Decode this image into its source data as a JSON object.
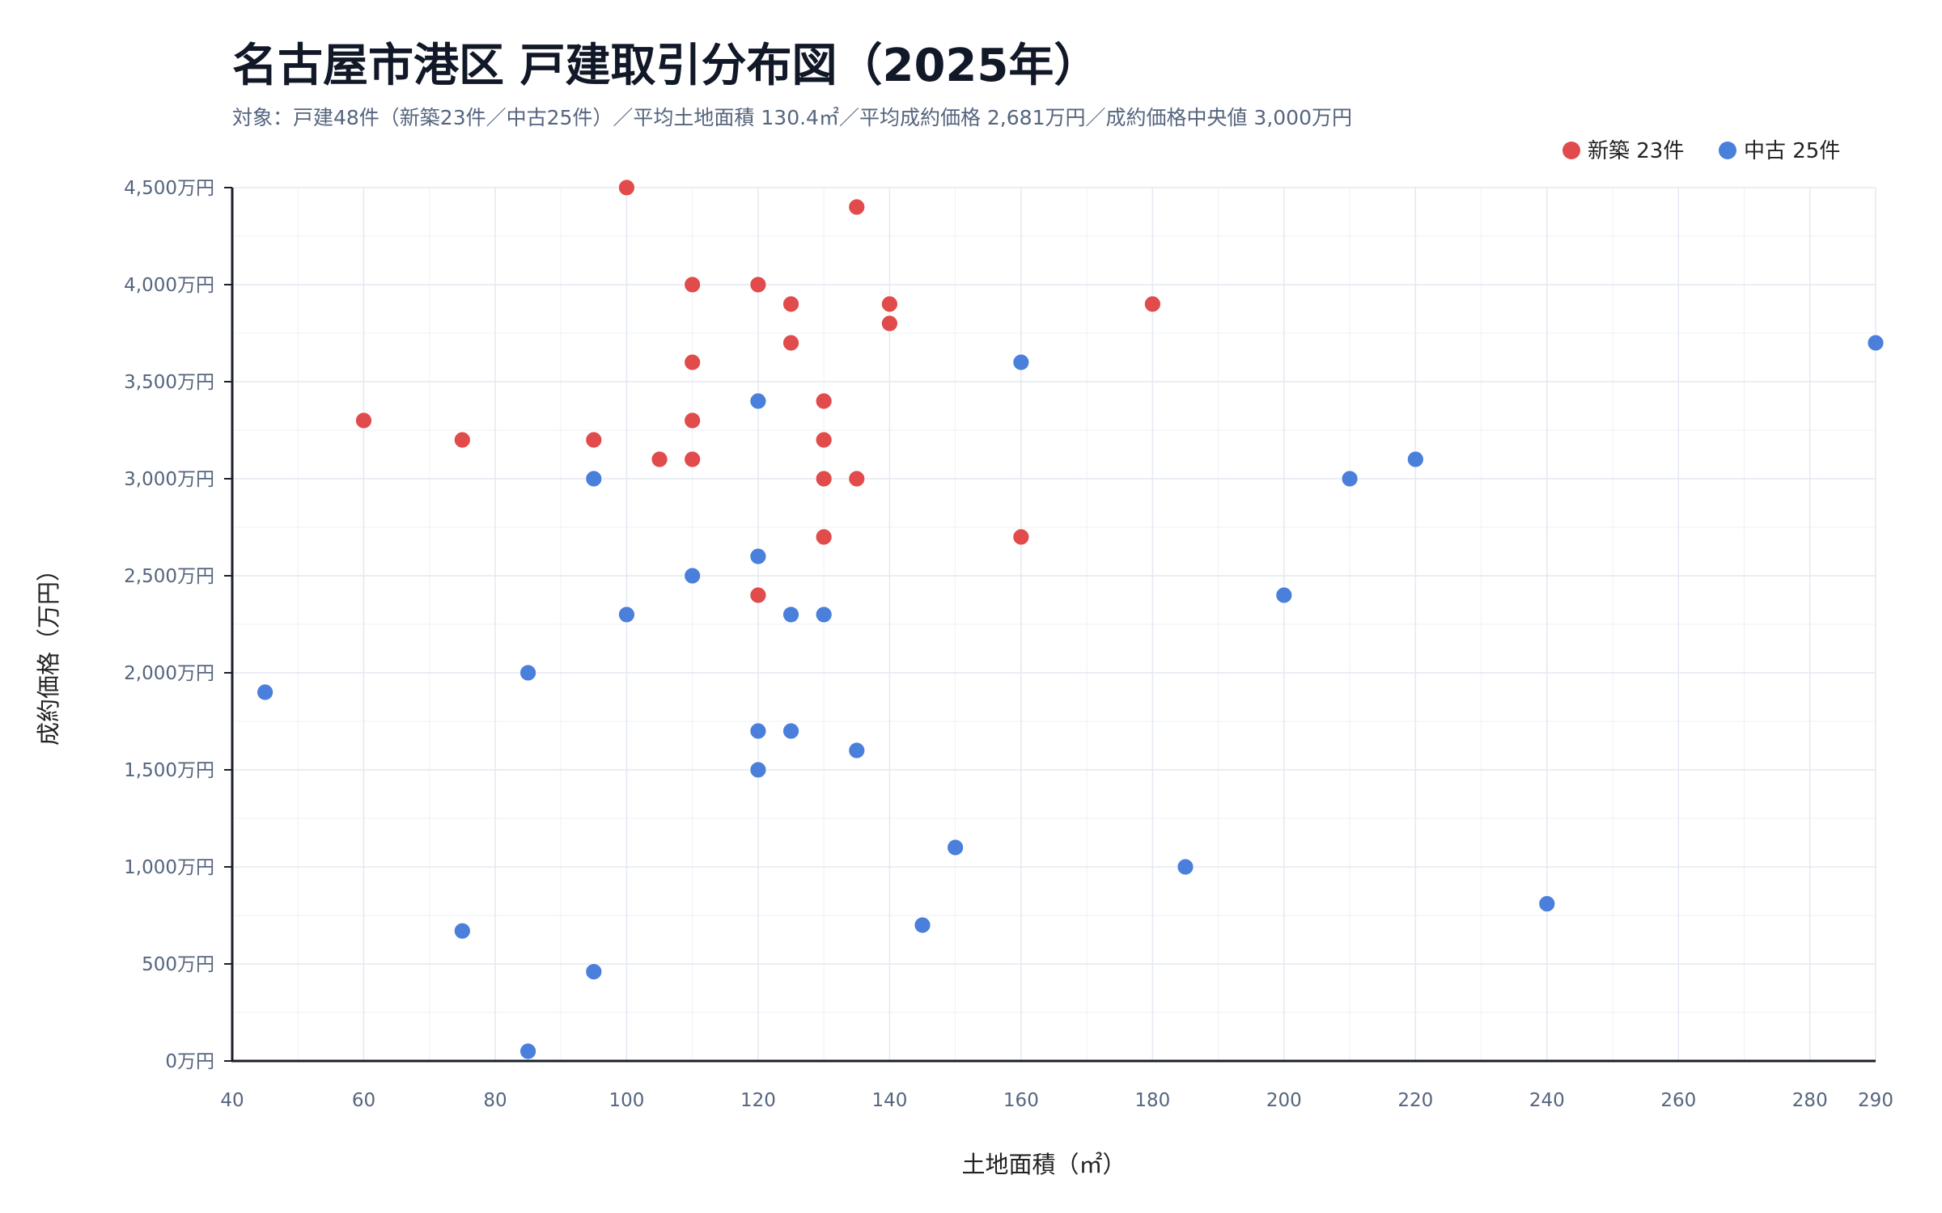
{
  "chart_data": {
    "type": "scatter",
    "title": "名古屋市港区 戸建取引分布図（2025年）",
    "subtitle": "対象：戸建48件（新築23件／中古25件）／平均土地面積 130.4㎡／平均成約価格 2,681万円／成約価格中央値 3,000万円",
    "xlabel": "土地面積（㎡）",
    "ylabel": "成約価格（万円）",
    "xlim": [
      40,
      290
    ],
    "ylim": [
      0,
      4500
    ],
    "x_ticks": [
      {
        "value": 40,
        "label": "40"
      },
      {
        "value": 60,
        "label": "60"
      },
      {
        "value": 80,
        "label": "80"
      },
      {
        "value": 100,
        "label": "100"
      },
      {
        "value": 120,
        "label": "120"
      },
      {
        "value": 140,
        "label": "140"
      },
      {
        "value": 160,
        "label": "160"
      },
      {
        "value": 180,
        "label": "180"
      },
      {
        "value": 200,
        "label": "200"
      },
      {
        "value": 220,
        "label": "220"
      },
      {
        "value": 240,
        "label": "240"
      },
      {
        "value": 260,
        "label": "260"
      },
      {
        "value": 280,
        "label": "280"
      },
      {
        "value": 290,
        "label": "290"
      }
    ],
    "y_ticks": [
      {
        "value": 0,
        "label": "0万円"
      },
      {
        "value": 500,
        "label": "500万円"
      },
      {
        "value": 1000,
        "label": "1,000万円"
      },
      {
        "value": 1500,
        "label": "1,500万円"
      },
      {
        "value": 2000,
        "label": "2,000万円"
      },
      {
        "value": 2500,
        "label": "2,500万円"
      },
      {
        "value": 3000,
        "label": "3,000万円"
      },
      {
        "value": 3500,
        "label": "3,500万円"
      },
      {
        "value": 4000,
        "label": "4,000万円"
      },
      {
        "value": 4500,
        "label": "4,500万円"
      }
    ],
    "grid": true,
    "legend_position": "top-right",
    "series": [
      {
        "name": "新築 23件",
        "color": "#e14b4b",
        "points": [
          [
            100,
            4500
          ],
          [
            135,
            4400
          ],
          [
            110,
            4000
          ],
          [
            120,
            4000
          ],
          [
            125,
            3900
          ],
          [
            140,
            3900
          ],
          [
            180,
            3900
          ],
          [
            140,
            3800
          ],
          [
            125,
            3700
          ],
          [
            110,
            3600
          ],
          [
            130,
            3400
          ],
          [
            60,
            3300
          ],
          [
            110,
            3300
          ],
          [
            75,
            3200
          ],
          [
            95,
            3200
          ],
          [
            130,
            3200
          ],
          [
            105,
            3100
          ],
          [
            110,
            3100
          ],
          [
            130,
            3000
          ],
          [
            135,
            3000
          ],
          [
            130,
            2700
          ],
          [
            160,
            2700
          ],
          [
            120,
            2400
          ]
        ]
      },
      {
        "name": "中古 25件",
        "color": "#4a7fdc",
        "points": [
          [
            290,
            3700
          ],
          [
            160,
            3600
          ],
          [
            120,
            3400
          ],
          [
            220,
            3100
          ],
          [
            95,
            3000
          ],
          [
            210,
            3000
          ],
          [
            120,
            2600
          ],
          [
            110,
            2500
          ],
          [
            200,
            2400
          ],
          [
            100,
            2300
          ],
          [
            125,
            2300
          ],
          [
            130,
            2300
          ],
          [
            85,
            2000
          ],
          [
            45,
            1900
          ],
          [
            120,
            1700
          ],
          [
            125,
            1700
          ],
          [
            135,
            1600
          ],
          [
            120,
            1500
          ],
          [
            150,
            1100
          ],
          [
            185,
            1000
          ],
          [
            240,
            810
          ],
          [
            145,
            700
          ],
          [
            75,
            670
          ],
          [
            95,
            460
          ],
          [
            85,
            50
          ]
        ]
      }
    ]
  },
  "colors": {
    "background": "#ffffff",
    "grid": "#e3e8f1",
    "axis": "#1b1f2a",
    "tick_text": "#55657e",
    "title": "#111827"
  }
}
